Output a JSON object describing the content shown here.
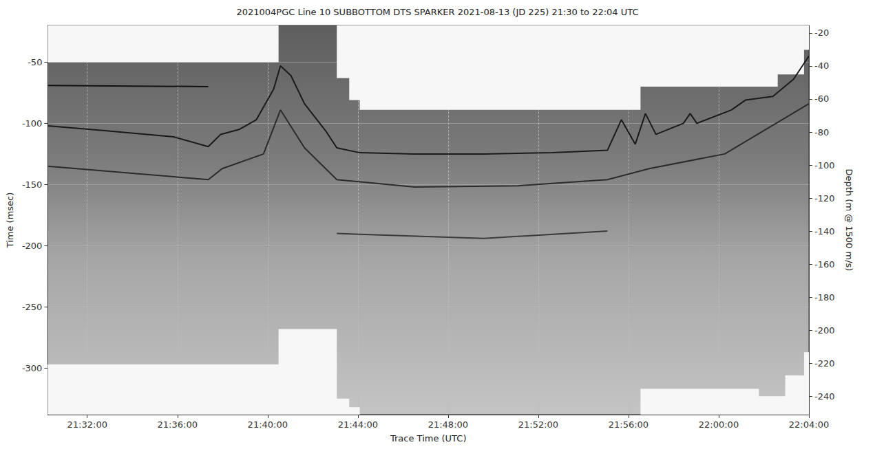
{
  "chart_data": {
    "type": "line",
    "title": "2021004PGC Line 10 SUBBOTTOM DTS SPARKER 2021-08-13 (JD 225) 21:30 to 22:04 UTC",
    "xlabel": "Trace Time (UTC)",
    "ylabel": "Time (msec)",
    "y2label": "Depth (m @ 1500 m/s)",
    "xlim": [
      "21:30:15",
      "22:04:00"
    ],
    "xticks": [
      "21:32:00",
      "21:36:00",
      "21:40:00",
      "21:44:00",
      "21:48:00",
      "21:52:00",
      "21:56:00",
      "22:00:00",
      "22:04:00"
    ],
    "ylim": [
      -338,
      -20
    ],
    "yticks": [
      -50,
      -100,
      -150,
      -200,
      -250,
      -300
    ],
    "y2lim": [
      -251,
      -15.5
    ],
    "y2ticks": [
      -20,
      -40,
      -60,
      -80,
      -100,
      -120,
      -140,
      -160,
      -180,
      -200,
      -220,
      -240
    ],
    "grid": true,
    "series": [
      {
        "type": "area",
        "color": "#f7f7f7",
        "x": [
          "21:30:15",
          "21:40:29",
          "21:40:29",
          "21:43:04",
          "21:43:04",
          "21:43:37",
          "21:43:37",
          "21:44:05",
          "21:44:05",
          "21:56:32",
          "21:56:32",
          "22:02:37",
          "22:02:37",
          "22:03:47",
          "22:03:47",
          "22:04:00"
        ],
        "values": [
          -50,
          -50,
          -20,
          -20,
          -63,
          -63,
          -81,
          -81,
          -89,
          -89,
          -70,
          -70,
          -60,
          -60,
          -40,
          -40
        ]
      },
      {
        "type": "area",
        "color": "#f7f7f7",
        "x": [
          "21:30:15",
          "21:40:29",
          "21:40:29",
          "21:43:04",
          "21:43:04",
          "21:43:37",
          "21:43:37",
          "21:44:05",
          "21:44:05",
          "21:56:32",
          "21:56:32",
          "22:01:47",
          "22:01:47",
          "22:02:57",
          "22:02:57",
          "22:03:47",
          "22:03:47",
          "22:04:00"
        ],
        "values": [
          -297,
          -297,
          -268,
          -268,
          -325,
          -325,
          -332,
          -332,
          -338,
          -338,
          -317,
          -317,
          -323,
          -323,
          -306,
          -306,
          -287,
          -287
        ]
      },
      {
        "type": "line",
        "color": "#111111",
        "line_style": "solid",
        "x": [
          "21:30:15",
          "21:37:22"
        ],
        "values": [
          -69,
          -70
        ]
      },
      {
        "type": "line",
        "color": "#1a1a1a",
        "line_style": "solid",
        "x": [
          "21:30:15",
          "21:32:47",
          "21:35:50",
          "21:37:22",
          "21:37:55",
          "21:38:44",
          "21:39:30",
          "21:40:16",
          "21:40:34",
          "21:41:02",
          "21:41:38",
          "21:42:34",
          "21:43:04",
          "21:44:05",
          "21:46:31",
          "21:49:35",
          "21:52:38",
          "21:55:04",
          "21:55:41",
          "21:56:18",
          "21:56:45",
          "21:57:13",
          "21:58:26",
          "21:58:44",
          "21:59:02",
          "22:00:34",
          "22:01:11",
          "22:02:24",
          "22:03:19",
          "22:04:00"
        ],
        "values": [
          -102,
          -106,
          -111,
          -119,
          -109,
          -105,
          -97,
          -72,
          -53,
          -61,
          -84,
          -106,
          -120,
          -124,
          -125,
          -125,
          -124,
          -122,
          -97,
          -117,
          -92,
          -109,
          -100,
          -92,
          -100,
          -89,
          -81,
          -78,
          -64,
          -45
        ]
      },
      {
        "type": "line",
        "color": "#2b2b2b",
        "line_style": "solid",
        "x": [
          "21:30:15",
          "21:37:22",
          "21:37:59",
          "21:39:49",
          "21:40:34",
          "21:41:38",
          "21:43:04",
          "21:46:31",
          "21:51:06",
          "21:55:04",
          "21:56:55",
          "22:00:16",
          "22:04:00"
        ],
        "values": [
          -135,
          -146,
          -137,
          -125,
          -89,
          -120,
          -146,
          -152,
          -151,
          -146,
          -137,
          -125,
          -84
        ]
      },
      {
        "type": "line",
        "color": "#3a3a3a",
        "line_style": "solid",
        "x": [
          "21:43:04",
          "21:49:35",
          "21:55:04"
        ],
        "values": [
          -190,
          -194,
          -188
        ]
      }
    ]
  }
}
